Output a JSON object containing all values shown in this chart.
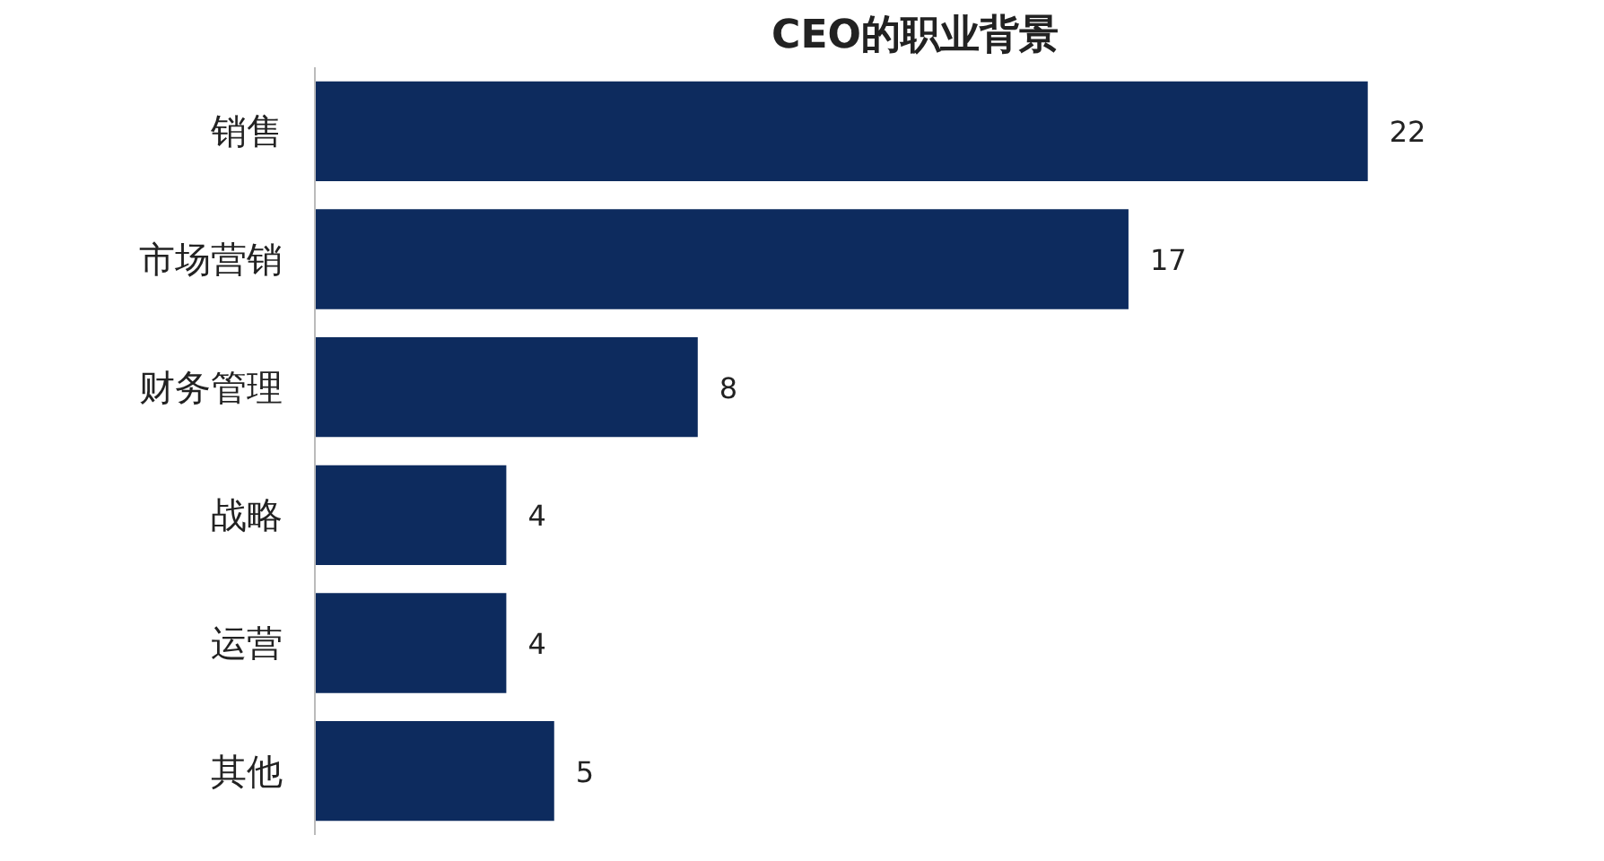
{
  "chart_data": {
    "type": "bar",
    "orientation": "horizontal",
    "title": "CEO的职业背景",
    "categories": [
      "销售",
      "市场营销",
      "财务管理",
      "战略",
      "运营",
      "其他"
    ],
    "values": [
      22,
      17,
      8,
      4,
      4,
      5
    ],
    "color": "#0d2b5e",
    "data_labels": true
  }
}
